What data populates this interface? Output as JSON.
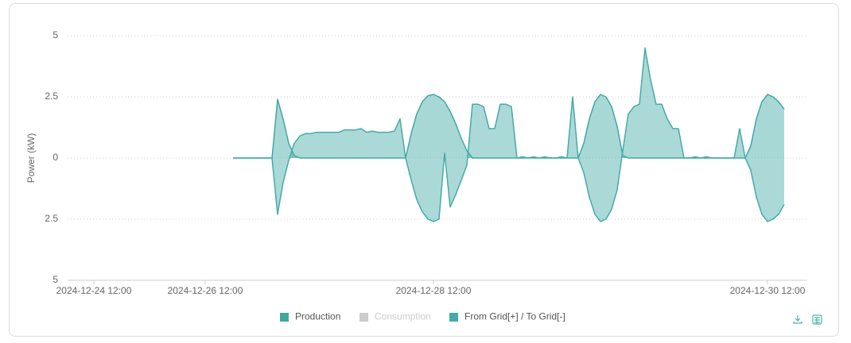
{
  "chart_data": {
    "type": "area",
    "y_label": "Power  (kW)",
    "categories": [
      null,
      null,
      null,
      null,
      "2024-12-24 12:00",
      null,
      null,
      null,
      null,
      null,
      null,
      null,
      null,
      null,
      null,
      null,
      null,
      null,
      null,
      null,
      null,
      null,
      null,
      null,
      "2024-12-26 12:00",
      null,
      null,
      null,
      null,
      null,
      null,
      null,
      null,
      null,
      null,
      null,
      null,
      null,
      null,
      null,
      null,
      null,
      null,
      null,
      null,
      null,
      null,
      null,
      null,
      null,
      null,
      null,
      null,
      null,
      null,
      null,
      null,
      null,
      null,
      null,
      null,
      null,
      null,
      null,
      null,
      "2024-12-28 12:00",
      null,
      null,
      null,
      null,
      null,
      null,
      null,
      null,
      null,
      null,
      null,
      null,
      null,
      null,
      null,
      null,
      null,
      null,
      null,
      null,
      null,
      null,
      null,
      null,
      null,
      null,
      null,
      null,
      null,
      null,
      null,
      null,
      null,
      null,
      null,
      null,
      null,
      null,
      null,
      null,
      null,
      null,
      null,
      null,
      null,
      null,
      null,
      null,
      null,
      null,
      null,
      null,
      null,
      null,
      null,
      null,
      null,
      null,
      null,
      "2024-12-30 12:00",
      null,
      null,
      null,
      null,
      null,
      null,
      null
    ],
    "series": [
      {
        "name": "Production",
        "color": "#3fa8a3",
        "values": [
          null,
          null,
          null,
          null,
          null,
          null,
          null,
          null,
          null,
          null,
          null,
          null,
          null,
          null,
          null,
          null,
          null,
          null,
          null,
          null,
          null,
          null,
          null,
          null,
          null,
          null,
          null,
          null,
          null,
          0,
          0,
          0,
          0,
          0,
          0,
          0,
          0,
          2.4,
          1.6,
          0.6,
          0.1,
          0,
          0,
          0,
          0,
          0,
          0,
          0,
          0,
          0,
          0,
          0,
          0,
          0,
          0,
          0,
          0,
          0,
          0,
          0,
          0,
          1.0,
          1.8,
          2.3,
          2.55,
          2.6,
          2.5,
          2.3,
          1.9,
          1.4,
          0.8,
          0.3,
          0,
          0,
          0,
          0,
          0,
          0,
          0,
          0,
          0,
          0,
          0,
          0,
          0,
          0,
          0,
          0,
          0,
          0,
          0,
          0,
          0.6,
          1.6,
          2.3,
          2.6,
          2.5,
          2.1,
          1.3,
          0.1,
          0,
          0,
          0,
          0,
          0,
          0,
          0,
          0,
          0,
          0,
          0,
          0,
          0,
          0,
          0,
          0,
          0,
          0,
          0,
          0,
          0,
          0,
          0.5,
          1.6,
          2.3,
          2.6,
          2.5,
          2.3,
          2.0,
          null,
          null,
          null,
          null
        ]
      },
      {
        "name": "Consumption",
        "color": "#cccccc",
        "visible": false
      },
      {
        "name": "From Grid[+] / To Grid[-]",
        "color": "#45aba7",
        "values": [
          null,
          null,
          null,
          null,
          null,
          null,
          null,
          null,
          null,
          null,
          null,
          null,
          null,
          null,
          null,
          null,
          null,
          null,
          null,
          null,
          null,
          null,
          null,
          null,
          null,
          null,
          null,
          null,
          null,
          0,
          0,
          0,
          0,
          0,
          0,
          0,
          0,
          -2.3,
          -1.0,
          -0.1,
          0.6,
          0.9,
          1.0,
          1.0,
          1.05,
          1.05,
          1.05,
          1.05,
          1.05,
          1.15,
          1.15,
          1.15,
          1.2,
          1.05,
          1.1,
          1.05,
          1.05,
          1.05,
          1.1,
          1.6,
          0,
          -0.9,
          -1.7,
          -2.2,
          -2.5,
          -2.6,
          -2.5,
          0.2,
          -2.0,
          -1.5,
          -0.9,
          -0.3,
          2.2,
          2.2,
          2.1,
          1.2,
          1.2,
          2.2,
          2.2,
          2.1,
          0,
          0.05,
          0,
          0.05,
          0,
          0.05,
          0,
          0,
          0.05,
          0,
          2.5,
          0,
          -0.6,
          -1.6,
          -2.3,
          -2.6,
          -2.5,
          -2.1,
          -1.3,
          0.3,
          1.8,
          2.1,
          2.2,
          4.5,
          3.2,
          2.2,
          2.2,
          1.6,
          1.2,
          1.2,
          0,
          0,
          0.05,
          0,
          0.05,
          0,
          0,
          0,
          0,
          0,
          1.2,
          0,
          -0.5,
          -1.6,
          -2.3,
          -2.6,
          -2.5,
          -2.3,
          -1.9,
          null,
          null,
          null,
          null
        ]
      }
    ],
    "ylim": [
      -5,
      5
    ],
    "yticks": [
      {
        "value": -5,
        "label": "5"
      },
      {
        "value": -2.5,
        "label": "2.5"
      },
      0,
      2.5,
      5
    ],
    "grid": true
  }
}
